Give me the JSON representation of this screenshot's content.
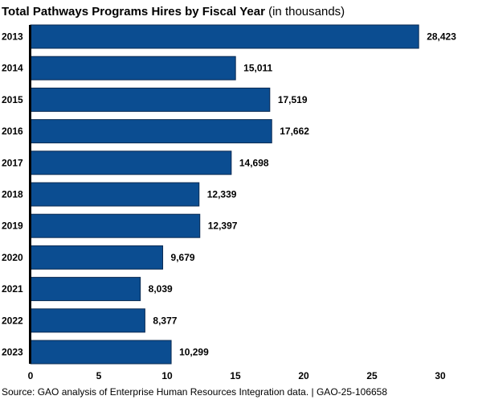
{
  "chart_data": {
    "type": "bar",
    "orientation": "horizontal",
    "title": "Total Pathways Programs Hires by Fiscal Year",
    "subtitle": "(in thousands)",
    "categories": [
      "2013",
      "2014",
      "2015",
      "2016",
      "2017",
      "2018",
      "2019",
      "2020",
      "2021",
      "2022",
      "2023"
    ],
    "values": [
      28.423,
      15.011,
      17.519,
      17.662,
      14.698,
      12.339,
      12.397,
      9.679,
      8.039,
      8.377,
      10.299
    ],
    "data_labels": [
      "28,423",
      "15,011",
      "17,519",
      "17,662",
      "14,698",
      "12,339",
      "12,397",
      "9,679",
      "8,039",
      "8,377",
      "10,299"
    ],
    "xlabel": "",
    "ylabel": "",
    "xlim": [
      0,
      30
    ],
    "xticks": [
      0,
      5,
      10,
      15,
      20,
      25,
      30
    ],
    "grid": false,
    "legend": "none",
    "bar_color": "#0b4d91",
    "bar_edge_color": "#0a2a52"
  },
  "source": "Source: GAO analysis of Enterprise Human Resources Integration data.  |  GAO-25-106658"
}
